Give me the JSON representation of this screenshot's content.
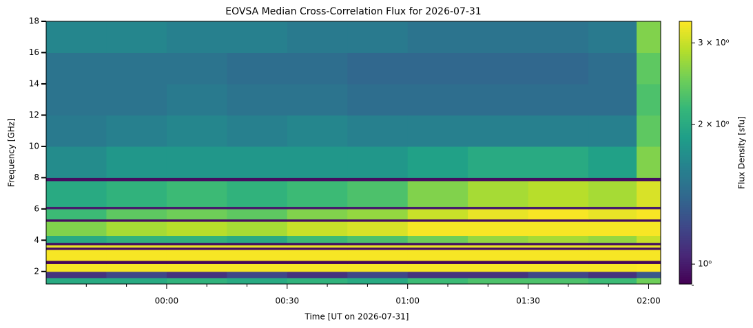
{
  "chart_data": {
    "type": "heatmap",
    "title": "EOVSA Median Cross-Correlation Flux for 2026-07-31",
    "x_label": "Time [UT on 2026-07-31]",
    "y_label": "Frequency [GHz]",
    "colorbar_label": "Flux Density [sfu]",
    "colormap": "viridis",
    "colorbar_log": true,
    "xlim": [
      -30,
      123
    ],
    "xticks": [
      {
        "value": 0,
        "label": "00:00"
      },
      {
        "value": 30,
        "label": "00:30"
      },
      {
        "value": 60,
        "label": "01:00"
      },
      {
        "value": 90,
        "label": "01:30"
      },
      {
        "value": 120,
        "label": "02:00"
      }
    ],
    "xticks_minor": [
      -20,
      -10,
      10,
      20,
      40,
      50,
      70,
      80,
      100,
      110
    ],
    "ylim": [
      1.2,
      18
    ],
    "yticks": [
      2,
      4,
      6,
      8,
      10,
      12,
      14,
      16,
      18
    ],
    "clim": [
      0.906,
      3.34
    ],
    "cticks": [
      {
        "value": 1,
        "label": "10⁰"
      },
      {
        "value": 2,
        "label": "2 × 10⁰"
      },
      {
        "value": 3,
        "label": "3 × 10⁰"
      }
    ],
    "cticks_minor": [
      0.9
    ],
    "x_edges": [
      -30,
      -15,
      0,
      15,
      30,
      45,
      60,
      75,
      90,
      105,
      117,
      123
    ],
    "y_edges": [
      1.2,
      1.6,
      2.0,
      2.5,
      2.7,
      3.4,
      3.55,
      3.7,
      3.85,
      4.3,
      5.2,
      5.35,
      6.0,
      6.15,
      7.8,
      8.0,
      10,
      12,
      14,
      16,
      18
    ],
    "z": [
      [
        2.0,
        2.0,
        2.1,
        2.0,
        2.1,
        2.0,
        2.2,
        2.3,
        2.3,
        2.2,
        2.5
      ],
      [
        1.1,
        1.2,
        1.1,
        1.2,
        1.1,
        1.2,
        1.1,
        1.1,
        1.2,
        1.1,
        1.3
      ],
      [
        3.3,
        3.3,
        3.3,
        3.3,
        3.3,
        3.3,
        3.3,
        3.3,
        3.3,
        3.3,
        3.4
      ],
      [
        0.92,
        0.92,
        0.92,
        0.92,
        0.92,
        0.92,
        0.92,
        0.92,
        0.92,
        0.92,
        0.92
      ],
      [
        3.3,
        3.3,
        3.3,
        3.3,
        3.3,
        3.3,
        3.3,
        3.3,
        3.3,
        3.3,
        3.3
      ],
      [
        0.95,
        0.95,
        0.95,
        0.95,
        0.95,
        0.95,
        0.95,
        0.95,
        0.95,
        0.95,
        0.95
      ],
      [
        3.2,
        3.2,
        3.2,
        3.2,
        3.2,
        3.2,
        3.2,
        3.2,
        3.2,
        3.2,
        3.2
      ],
      [
        0.95,
        0.95,
        0.95,
        0.95,
        0.95,
        0.95,
        0.95,
        0.95,
        0.95,
        0.95,
        0.95
      ],
      [
        2.0,
        2.1,
        2.1,
        2.0,
        2.2,
        2.3,
        2.5,
        2.7,
        2.8,
        2.7,
        3.0
      ],
      [
        2.6,
        2.8,
        2.9,
        2.8,
        3.0,
        3.1,
        3.3,
        3.3,
        3.3,
        3.3,
        3.3
      ],
      [
        0.95,
        0.95,
        0.95,
        0.95,
        0.95,
        0.95,
        0.95,
        0.95,
        0.95,
        0.95,
        0.95
      ],
      [
        2.2,
        2.4,
        2.5,
        2.4,
        2.6,
        2.7,
        3.0,
        3.2,
        3.3,
        3.2,
        3.3
      ],
      [
        1.0,
        1.0,
        1.0,
        1.0,
        1.0,
        1.0,
        1.0,
        1.0,
        1.0,
        1.0,
        1.0
      ],
      [
        2.0,
        2.1,
        2.2,
        2.1,
        2.2,
        2.3,
        2.6,
        2.8,
        2.9,
        2.8,
        3.1
      ],
      [
        0.95,
        0.95,
        0.95,
        0.95,
        0.95,
        0.95,
        0.95,
        0.95,
        0.95,
        0.95,
        0.95
      ],
      [
        1.7,
        1.8,
        1.8,
        1.8,
        1.8,
        1.8,
        1.9,
        2.0,
        2.0,
        1.9,
        2.6
      ],
      [
        1.55,
        1.6,
        1.65,
        1.6,
        1.65,
        1.6,
        1.6,
        1.6,
        1.6,
        1.6,
        2.4
      ],
      [
        1.5,
        1.5,
        1.55,
        1.5,
        1.5,
        1.45,
        1.45,
        1.45,
        1.45,
        1.45,
        2.3
      ],
      [
        1.5,
        1.5,
        1.5,
        1.45,
        1.45,
        1.4,
        1.4,
        1.4,
        1.4,
        1.45,
        2.4
      ],
      [
        1.65,
        1.65,
        1.6,
        1.6,
        1.55,
        1.55,
        1.5,
        1.5,
        1.5,
        1.55,
        2.6
      ]
    ]
  }
}
